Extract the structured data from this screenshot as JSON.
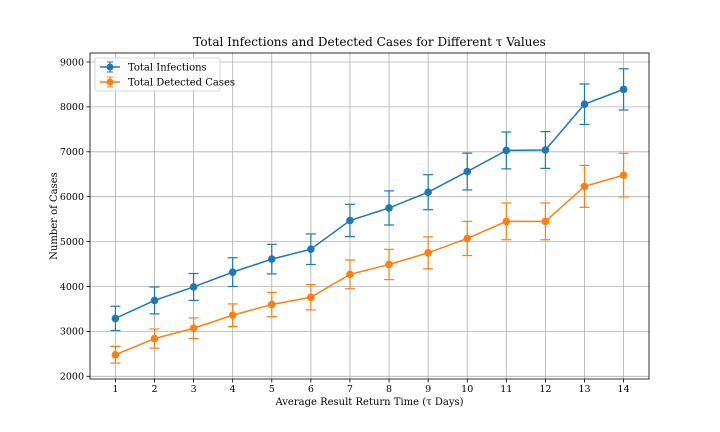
{
  "chart_data": {
    "type": "line",
    "title": "Total Infections and Detected Cases for Different τ Values",
    "xlabel": "Average Result Return Time (τ Days)",
    "ylabel": "Number of Cases",
    "x": [
      1,
      2,
      3,
      4,
      5,
      6,
      7,
      8,
      9,
      10,
      11,
      12,
      13,
      14
    ],
    "xlim": [
      0.35,
      14.65
    ],
    "ylim": [
      1940,
      9200
    ],
    "yticks": [
      2000,
      3000,
      4000,
      5000,
      6000,
      7000,
      8000,
      9000
    ],
    "grid": true,
    "legend_position": "top-left",
    "error_bars": true,
    "series": [
      {
        "name": "Total Infections",
        "color": "#1f77b4",
        "values": [
          3290,
          3690,
          3990,
          4320,
          4610,
          4830,
          5470,
          5750,
          6100,
          6560,
          7030,
          7040,
          8060,
          8390
        ],
        "errors": [
          270,
          300,
          300,
          320,
          330,
          340,
          360,
          380,
          390,
          410,
          410,
          410,
          450,
          460
        ]
      },
      {
        "name": "Total Detected Cases",
        "color": "#ff7f0e",
        "values": [
          2480,
          2840,
          3070,
          3360,
          3600,
          3760,
          4270,
          4490,
          4750,
          5070,
          5450,
          5450,
          6230,
          6480
        ]
      }
    ]
  }
}
